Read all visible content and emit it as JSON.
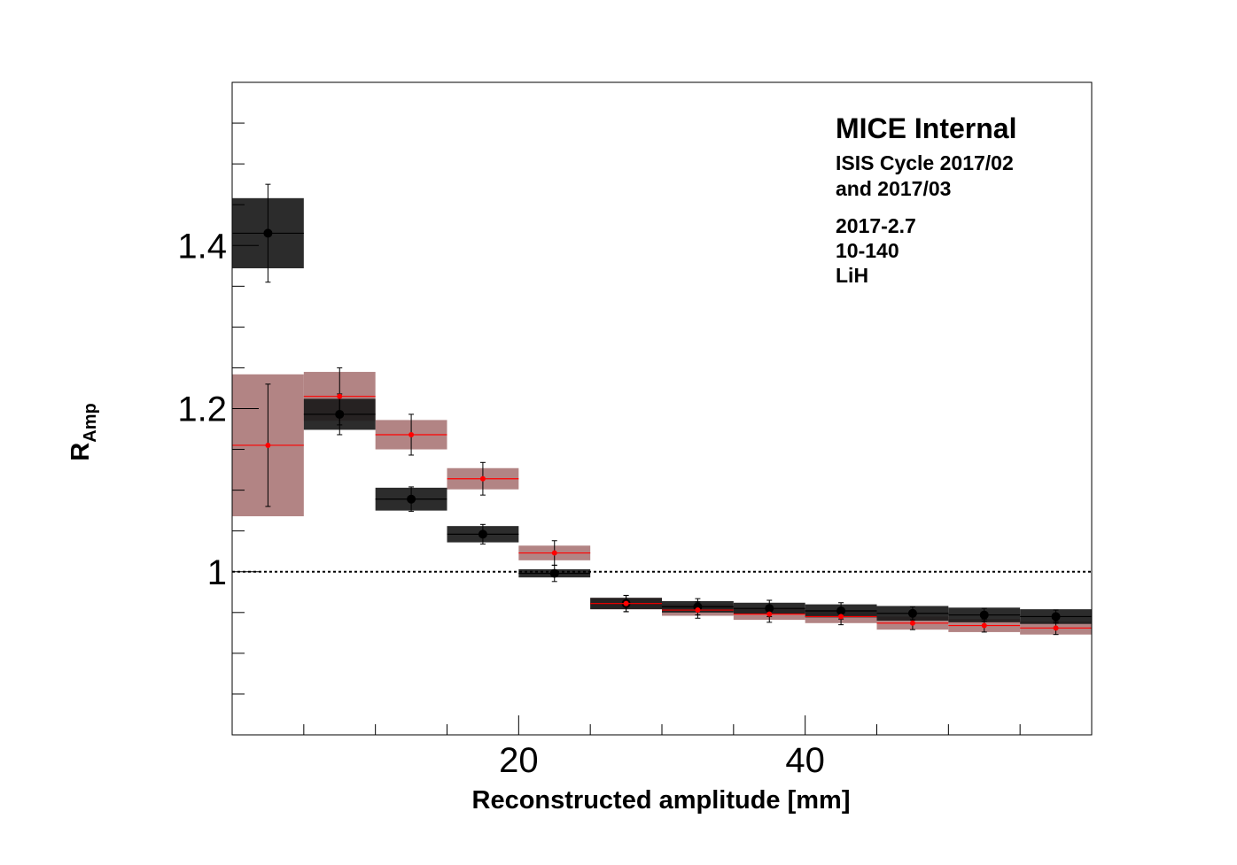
{
  "chart_data": {
    "type": "scatter",
    "xlabel": "Reconstructed amplitude [mm]",
    "ylabel": "R",
    "ylabel_sub": "Amp",
    "xlim": [
      0,
      60
    ],
    "ylim": [
      0.8,
      1.6
    ],
    "x_major_ticks": [
      20,
      40
    ],
    "x_minor_ticks": [
      5,
      10,
      15,
      25,
      30,
      35,
      45,
      50,
      55
    ],
    "y_major_ticks": [
      1,
      1.2,
      1.4
    ],
    "y_minor_ticks": [
      0.85,
      0.9,
      0.95,
      1.05,
      1.1,
      1.15,
      1.25,
      1.3,
      1.35,
      1.45,
      1.5,
      1.55
    ],
    "reference_line": 1,
    "annotations": {
      "title": "MICE Internal",
      "line1": "ISIS Cycle 2017/02",
      "line2": "and 2017/03",
      "line3": "2017-2.7",
      "line4": "10-140",
      "line5": "LiH"
    },
    "colors": {
      "series_black_marker": "#000000",
      "series_black_band": "#1a1a1a",
      "series_red_marker": "#ff0000",
      "series_red_band": "#a46e6e",
      "reference_line": "#000000"
    },
    "series": [
      {
        "x": [
          2.5,
          7.5,
          12.5,
          17.5,
          22.5,
          27.5,
          32.5,
          37.5,
          42.5,
          47.5,
          52.5,
          57.5
        ],
        "values": [
          1.415,
          1.193,
          1.089,
          1.046,
          0.998,
          0.961,
          0.957,
          0.955,
          0.952,
          0.949,
          0.947,
          0.945
        ],
        "errors": [
          0.06,
          0.025,
          0.015,
          0.012,
          0.01,
          0.01,
          0.01,
          0.01,
          0.01,
          0.008,
          0.008,
          0.008
        ],
        "band_halfwidth": [
          0.043,
          0.019,
          0.014,
          0.01,
          0.005,
          0.007,
          0.007,
          0.007,
          0.008,
          0.009,
          0.009,
          0.009
        ]
      },
      {
        "x": [
          2.5,
          7.5,
          12.5,
          17.5,
          22.5,
          27.5,
          32.5,
          37.5,
          42.5,
          47.5,
          52.5,
          57.5
        ],
        "values": [
          1.155,
          1.215,
          1.168,
          1.114,
          1.023,
          0.961,
          0.953,
          0.948,
          0.945,
          0.937,
          0.934,
          0.931
        ],
        "errors": [
          0.075,
          0.035,
          0.025,
          0.02,
          0.015,
          0.01,
          0.01,
          0.01,
          0.01,
          0.008,
          0.008,
          0.008
        ],
        "band_halfwidth": [
          0.087,
          0.03,
          0.018,
          0.013,
          0.009,
          0.007,
          0.007,
          0.007,
          0.008,
          0.008,
          0.008,
          0.008
        ]
      }
    ]
  }
}
